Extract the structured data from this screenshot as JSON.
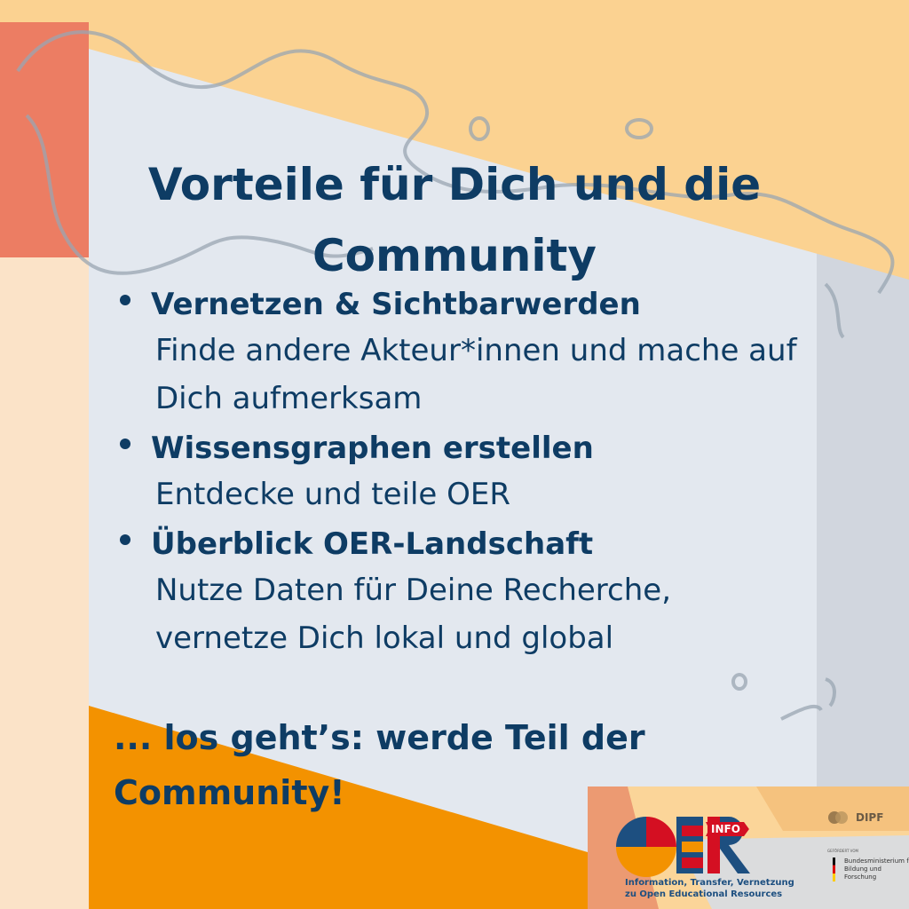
{
  "title": "Vorteile für Dich und die Community",
  "items": [
    {
      "heading": "Vernetzen & Sichtbarwerden",
      "body": "Finde andere Akteur*innen und mache auf Dich aufmerksam"
    },
    {
      "heading": "Wissensgraphen erstellen",
      "body": "Entdecke und teile OER"
    },
    {
      "heading": "Überblick OER-Landschaft",
      "body": "Nutze Daten für Deine Recherche, vernetze Dich lokal und global"
    }
  ],
  "cta": "... los geht’s: werde Teil der Community!",
  "logo": {
    "name": "OER INFO",
    "tag": "INFO",
    "tagline_1": "Information, Transfer, Vernetzung",
    "tagline_2": "zu Open Educational Resources",
    "partner": "DIPF",
    "funded_by": "GEFÖRDERT VOM",
    "ministry": "Bundesministerium für Bildung und Forschung"
  },
  "colors": {
    "text": "#0e3c64",
    "peach": "#fbd291",
    "salmon": "#ec7d63",
    "orange": "#f39200",
    "panel": "#e3e8ef"
  }
}
